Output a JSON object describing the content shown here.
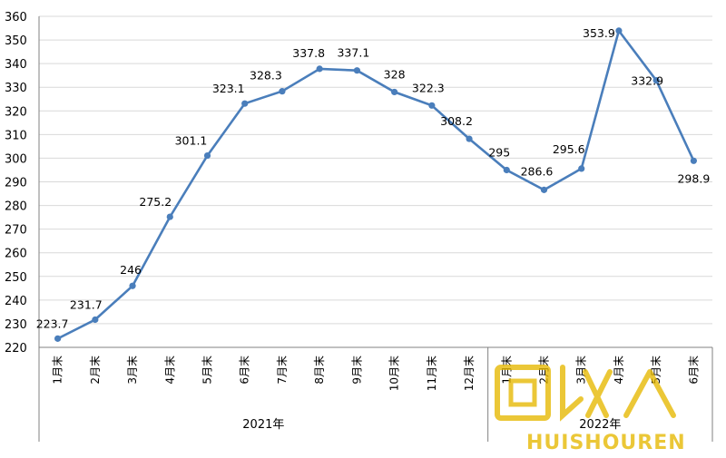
{
  "chart_data": {
    "type": "line",
    "title": "",
    "xlabel": "",
    "ylabel": "",
    "ylim": [
      220,
      360
    ],
    "y_ticks": [
      220,
      230,
      240,
      250,
      260,
      270,
      280,
      290,
      300,
      310,
      320,
      330,
      340,
      350,
      360
    ],
    "grid": "horizontal",
    "legend": "none",
    "color": "#4a7ebb",
    "categories": [
      "1月末",
      "2月末",
      "3月末",
      "4月末",
      "5月末",
      "6月末",
      "7月末",
      "8月末",
      "9月末",
      "10月末",
      "11月末",
      "12月末",
      "1月末",
      "2月末",
      "3月末",
      "4月末",
      "5月末",
      "6月末"
    ],
    "values": [
      223.7,
      231.7,
      246,
      275.2,
      301.1,
      323.1,
      328.3,
      337.8,
      337.1,
      328,
      322.3,
      308.2,
      295,
      286.6,
      295.6,
      353.9,
      332.9,
      298.9
    ],
    "data_labels": [
      "223.7",
      "231.7",
      "246",
      "275.2",
      "301.1",
      "323.1",
      "328.3",
      "337.8",
      "337.1",
      "328",
      "322.3",
      "308.2",
      "295",
      "286.6",
      "295.6",
      "353.9",
      "332.9",
      "298.9"
    ],
    "groups": [
      {
        "label": "2021年",
        "count": 12
      },
      {
        "label": "2022年",
        "count": 6
      }
    ]
  },
  "watermark": {
    "text": "HUISHOUREN",
    "logo_glyphs": "回收人",
    "color": "#e6b800"
  }
}
